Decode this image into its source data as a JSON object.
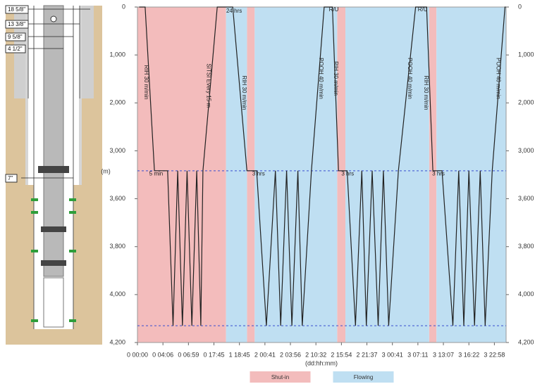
{
  "schematic": {
    "labels": [
      "18 5/8\"",
      "13 3/8\"",
      "9 5/8\"",
      "4 1/2\"",
      "7\""
    ]
  },
  "chart_data": {
    "type": "line",
    "y_label": "(m)",
    "x_label": "(dd:hh:mm)",
    "xscale": "segmented",
    "yscale": "segmented",
    "y_inverted": true,
    "xlim": [
      0,
      98
    ],
    "xticks": [
      {
        "value": 0,
        "label": "0 00:00"
      },
      {
        "value": 4.1,
        "label": "0 04:06"
      },
      {
        "value": 6.983,
        "label": "0 06:59"
      },
      {
        "value": 17.75,
        "label": "0 17:45"
      },
      {
        "value": 42.75,
        "label": "1 18:45"
      },
      {
        "value": 48.683,
        "label": "2 00:41"
      },
      {
        "value": 51.933,
        "label": "2 03:56"
      },
      {
        "value": 58.533,
        "label": "2 10:32"
      },
      {
        "value": 63.9,
        "label": "2 15:54"
      },
      {
        "value": 69.617,
        "label": "2 21:37"
      },
      {
        "value": 72.683,
        "label": "3 00:41"
      },
      {
        "value": 79.183,
        "label": "3 07:11"
      },
      {
        "value": 85.117,
        "label": "3 13:07"
      },
      {
        "value": 88.367,
        "label": "3 16:22"
      },
      {
        "value": 94.967,
        "label": "3 22:58"
      }
    ],
    "ylim": [
      0,
      4200
    ],
    "yticks": [
      0,
      {
        "value": 1000,
        "label": "1,000"
      },
      {
        "value": 2000,
        "label": "2,000"
      },
      {
        "value": 3000,
        "label": "3,000"
      },
      {
        "value": 3600,
        "label": "3,600"
      },
      {
        "value": 3800,
        "label": "3,800"
      },
      {
        "value": 4000,
        "label": "4,000"
      },
      {
        "value": 4200,
        "label": "4,200"
      }
    ],
    "hlines": [
      3250,
      4130
    ],
    "hline_color": "#3a4fd0",
    "shaded_regions": [
      {
        "name": "Shut-in",
        "color": "#f3bcbc",
        "spans": [
          [
            0,
            29.6
          ],
          [
            44.5,
            46.3
          ],
          [
            63.0,
            64.8
          ],
          [
            81.8,
            83.5
          ]
        ]
      },
      {
        "name": "Flowing",
        "color": "#bfdff2",
        "spans": [
          [
            29.6,
            44.5
          ],
          [
            46.3,
            63.0
          ],
          [
            64.8,
            81.8
          ],
          [
            83.5,
            98
          ]
        ]
      }
    ],
    "legend": "bottom",
    "series": [
      {
        "color": "#222222",
        "x": [
          0.27,
          1.23,
          2.73,
          4.63,
          5.24,
          5.77,
          6.3,
          6.83,
          8.44,
          10.47,
          12.22,
          13.1,
          21.0,
          36.2,
          44.5,
          46.75,
          48.87,
          50.02,
          50.69,
          51.45,
          52.32,
          53.87,
          55.0,
          57.37,
          60.27,
          62.0,
          63.29,
          65.19,
          67.05,
          68.48,
          69.48,
          70.25,
          70.97,
          71.6,
          72.23,
          74.21,
          78.6,
          81.2,
          82.67,
          84.8,
          86.33,
          87.07,
          87.72,
          88.37,
          89.83,
          91.3,
          92.58,
          94.4,
          97.7,
          97.9
        ],
        "values": [
          0,
          0,
          3250,
          3250,
          4130,
          3250,
          4130,
          3250,
          4130,
          3250,
          4130,
          3250,
          0,
          0,
          3250,
          3250,
          4130,
          3250,
          4130,
          3250,
          4130,
          3250,
          4130,
          3250,
          0,
          0,
          3250,
          3250,
          4130,
          3250,
          4130,
          3250,
          4130,
          3250,
          4130,
          3250,
          0,
          0,
          3250,
          3250,
          4130,
          3250,
          4130,
          3250,
          4130,
          3250,
          4130,
          3250,
          0,
          0
        ]
      }
    ],
    "annotations": [
      {
        "text": "5 min",
        "x": 3.0,
        "y": 3290
      },
      {
        "text": "24 hrs",
        "x": 37.5,
        "y": 90
      },
      {
        "text": "3 hrs",
        "x": 47.2,
        "y": 3290
      },
      {
        "text": "3 hrs",
        "x": 65.3,
        "y": 3290
      },
      {
        "text": "3 hrs",
        "x": 83.97,
        "y": 3290
      },
      {
        "text": "R/U",
        "x": 62.3,
        "y": 60
      },
      {
        "text": "R/U",
        "x": 80.3,
        "y": 60
      },
      {
        "text": "RIH 30 m/min",
        "x": 1.37,
        "y": 1570,
        "vertical": true
      },
      {
        "text": "SITSI Every 15 m",
        "x": 15.4,
        "y": 1640,
        "vertical": true
      },
      {
        "text": "RIH 30 m/min",
        "x": 43.8,
        "y": 1790,
        "vertical": true
      },
      {
        "text": "POOH 40 m/min",
        "x": 59.55,
        "y": 1490,
        "vertical": true
      },
      {
        "text": "RIH 30 m/min",
        "x": 62.7,
        "y": 1490,
        "vertical": true
      },
      {
        "text": "POOH 40 m/min",
        "x": 77.1,
        "y": 1490,
        "vertical": true
      },
      {
        "text": "RIH 30 m/min",
        "x": 81.0,
        "y": 1790,
        "vertical": true
      },
      {
        "text": "POOH 40 m/min",
        "x": 95.9,
        "y": 1490,
        "vertical": true
      }
    ]
  }
}
